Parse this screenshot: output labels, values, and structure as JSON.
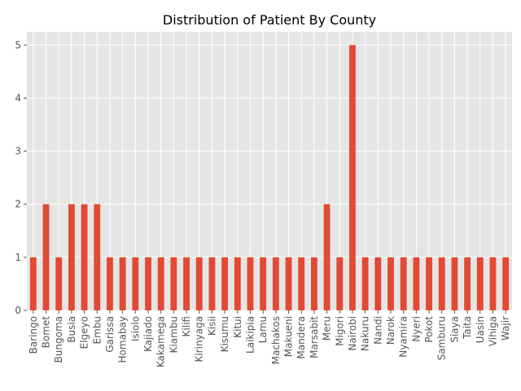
{
  "chart_data": {
    "type": "bar",
    "title": "Distribution of Patient By County",
    "xlabel": "",
    "ylabel": "",
    "ylim": [
      0,
      5.25
    ],
    "yticks": [
      0,
      1,
      2,
      3,
      4,
      5
    ],
    "grid": true,
    "categories": [
      "Baringo",
      "Bomet",
      "Bungoma",
      "Busia",
      "Elgeyo",
      "Embu",
      "Garissa",
      "Homabay",
      "Isiolo",
      "Kajiado",
      "Kakamega",
      "Kiambu",
      "Kilifi",
      "Kirinyaga",
      "Kisii",
      "Kisumu",
      "Kitui",
      "Laikipia",
      "Lamu",
      "Machakos",
      "Makueni",
      "Mandera",
      "Marsabit",
      "Meru",
      "Migori",
      "Nairobi",
      "Nakuru",
      "Nandi",
      "Narok",
      "Nyamira",
      "Nyeri",
      "Pokot",
      "Samburu",
      "Siaya",
      "Taita",
      "Uasin",
      "Vihiga",
      "Wajir"
    ],
    "values": [
      1,
      2,
      1,
      2,
      2,
      2,
      1,
      1,
      1,
      1,
      1,
      1,
      1,
      1,
      1,
      1,
      1,
      1,
      1,
      1,
      1,
      1,
      1,
      2,
      1,
      5,
      1,
      1,
      1,
      1,
      1,
      1,
      1,
      1,
      1,
      1,
      1,
      1
    ],
    "colors": {
      "bar": "#E24A33",
      "plot_background": "#E5E5E5",
      "grid": "#FFFFFF",
      "tick_label": "#555555"
    }
  }
}
